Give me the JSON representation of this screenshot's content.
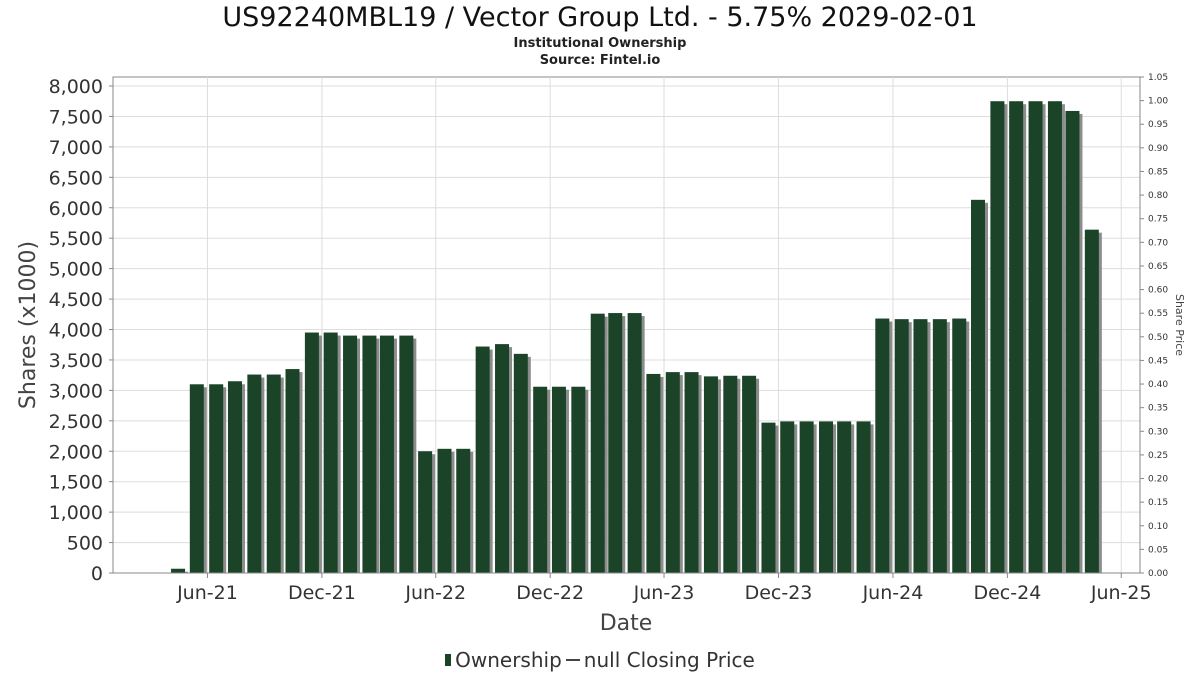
{
  "header": {
    "title": "US92240MBL19 / Vector Group Ltd. - 5.75% 2029-02-01",
    "subtitle": "Institutional Ownership",
    "source": "Source: Fintel.io"
  },
  "legend": {
    "ownership_label": "Ownership",
    "price_label": "null Closing Price"
  },
  "colors": {
    "bar": "#1b4328",
    "bar_shadow": "#8c8c8c",
    "grid": "#dddddd",
    "axis": "#888888"
  },
  "chart_data": {
    "type": "bar",
    "xlabel": "Date",
    "ylabel": "Shares (x1000)",
    "y2label": "Share Price",
    "ylim": [
      0,
      8000
    ],
    "y2lim": [
      0,
      1.05
    ],
    "grid": true,
    "legend_position": "bottom",
    "x_tick_labels": [
      "Jun-21",
      "Dec-21",
      "Jun-22",
      "Dec-22",
      "Jun-23",
      "Dec-23",
      "Jun-24",
      "Dec-24",
      "Jun-25"
    ],
    "y_tick_labels": [
      "0",
      "500",
      "1,000",
      "1,500",
      "2,000",
      "2,500",
      "3,000",
      "3,500",
      "4,000",
      "4,500",
      "5,000",
      "5,500",
      "6,000",
      "6,500",
      "7,000",
      "7,500",
      "8,000"
    ],
    "y2_tick_labels": [
      "0.00",
      "0.05",
      "0.10",
      "0.15",
      "0.20",
      "0.25",
      "0.30",
      "0.35",
      "0.40",
      "0.45",
      "0.50",
      "0.55",
      "0.60",
      "0.65",
      "0.70",
      "0.75",
      "0.80",
      "0.85",
      "0.90",
      "0.95",
      "1.00",
      "1.05"
    ],
    "x_domain": [
      "2021-01-01",
      "2025-07-01"
    ],
    "x_ticks": [
      "2021-06-01",
      "2021-12-01",
      "2022-06-01",
      "2022-12-01",
      "2023-06-01",
      "2023-12-01",
      "2024-06-01",
      "2024-12-01",
      "2025-06-01"
    ],
    "series": [
      {
        "name": "Ownership",
        "dates": [
          "2021-04-15",
          "2021-05-15",
          "2021-06-15",
          "2021-07-15",
          "2021-08-15",
          "2021-09-15",
          "2021-10-15",
          "2021-11-15",
          "2021-12-15",
          "2022-01-15",
          "2022-02-15",
          "2022-03-15",
          "2022-04-15",
          "2022-05-15",
          "2022-06-15",
          "2022-07-15",
          "2022-08-15",
          "2022-09-15",
          "2022-10-15",
          "2022-11-15",
          "2022-12-15",
          "2023-01-15",
          "2023-02-15",
          "2023-03-15",
          "2023-04-15",
          "2023-05-15",
          "2023-06-15",
          "2023-07-15",
          "2023-08-15",
          "2023-09-15",
          "2023-10-15",
          "2023-11-15",
          "2023-12-15",
          "2024-01-15",
          "2024-02-15",
          "2024-03-15",
          "2024-04-15",
          "2024-05-15",
          "2024-06-15",
          "2024-07-15",
          "2024-08-15",
          "2024-09-15",
          "2024-10-15",
          "2024-11-15",
          "2024-12-15",
          "2025-01-15",
          "2025-02-15",
          "2025-03-15",
          "2025-04-15"
        ],
        "values": [
          70,
          3100,
          3100,
          3150,
          3260,
          3260,
          3350,
          3950,
          3950,
          3900,
          3900,
          3900,
          3900,
          2000,
          2040,
          2040,
          3720,
          3760,
          3600,
          3060,
          3060,
          3060,
          4260,
          4270,
          4270,
          3270,
          3300,
          3300,
          3230,
          3240,
          3240,
          2470,
          2490,
          2490,
          2490,
          2490,
          2490,
          4180,
          4170,
          4170,
          4170,
          4180,
          6130,
          7750,
          7750,
          7750,
          7750,
          7590,
          5640
        ]
      }
    ]
  }
}
